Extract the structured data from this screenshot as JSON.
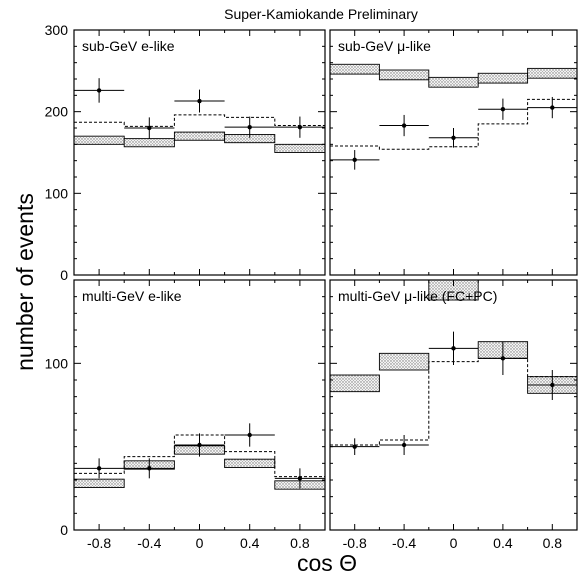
{
  "figure": {
    "title": "Super-Kamiokande Preliminary",
    "xlabel": "cos Θ",
    "ylabel": "number of events"
  },
  "chart_data": [
    {
      "type": "bar",
      "title": "sub-GeV e-like",
      "x_bins": [
        [
          -1.0,
          -0.6
        ],
        [
          -0.6,
          -0.2
        ],
        [
          -0.2,
          0.2
        ],
        [
          0.2,
          0.6
        ],
        [
          0.6,
          1.0
        ]
      ],
      "x_centers": [
        -0.8,
        -0.4,
        0,
        0.4,
        0.8
      ],
      "ylim": [
        0,
        300
      ],
      "yticks": [
        0,
        100,
        200,
        300
      ],
      "xticks": [],
      "mc_oscillated": {
        "center": [
          165,
          162,
          170,
          167,
          155
        ],
        "half_width": [
          5,
          5,
          5,
          5,
          5
        ]
      },
      "no_oscillation": [
        187,
        182,
        196,
        193,
        183
      ],
      "data": {
        "values": [
          226,
          180,
          213,
          181,
          181
        ],
        "errors": [
          15,
          13,
          14,
          13,
          13
        ]
      }
    },
    {
      "type": "bar",
      "title": "sub-GeV μ-like",
      "x_bins": [
        [
          -1.0,
          -0.6
        ],
        [
          -0.6,
          -0.2
        ],
        [
          -0.2,
          0.2
        ],
        [
          0.2,
          0.6
        ],
        [
          0.6,
          1.0
        ]
      ],
      "x_centers": [
        -0.8,
        -0.4,
        0,
        0.4,
        0.8
      ],
      "ylim": [
        0,
        300
      ],
      "yticks": [],
      "xticks": [],
      "mc_oscillated": {
        "center": [
          252,
          245,
          236,
          241,
          247
        ],
        "half_width": [
          6,
          6,
          6,
          6,
          6
        ]
      },
      "no_oscillation": [
        158,
        154,
        157,
        185,
        215
      ],
      "data": {
        "values": [
          141,
          183,
          168,
          203,
          205
        ],
        "errors": [
          12,
          13,
          12,
          13,
          13
        ]
      }
    },
    {
      "type": "bar",
      "title": "multi-GeV e-like",
      "x_bins": [
        [
          -1.0,
          -0.6
        ],
        [
          -0.6,
          -0.2
        ],
        [
          -0.2,
          0.2
        ],
        [
          0.2,
          0.6
        ],
        [
          0.6,
          1.0
        ]
      ],
      "x_centers": [
        -0.8,
        -0.4,
        0,
        0.4,
        0.8
      ],
      "ylim": [
        0,
        150
      ],
      "yticks": [
        0,
        100
      ],
      "xticks": [
        "-0.8",
        "-0.4",
        "0",
        "0.4",
        "0.8"
      ],
      "mc_oscillated": {
        "center": [
          28,
          39,
          48,
          40,
          27
        ],
        "half_width": [
          2.5,
          2.5,
          2.5,
          2.5,
          2.5
        ]
      },
      "no_oscillation": [
        34,
        44,
        57,
        47,
        32
      ],
      "data": {
        "values": [
          37,
          37,
          51,
          57,
          31
        ],
        "errors": [
          6,
          6,
          7,
          7,
          6
        ]
      }
    },
    {
      "type": "bar",
      "title": "multi-GeV μ-like (FC+PC)",
      "x_bins": [
        [
          -1.0,
          -0.6
        ],
        [
          -0.6,
          -0.2
        ],
        [
          -0.2,
          0.2
        ],
        [
          0.2,
          0.6
        ],
        [
          0.6,
          1.0
        ]
      ],
      "x_centers": [
        -0.8,
        -0.4,
        0,
        0.4,
        0.8
      ],
      "ylim": [
        0,
        150
      ],
      "yticks": [],
      "xticks": [
        "-0.8",
        "-0.4",
        "0",
        "0.4",
        "0.8"
      ],
      "mc_oscillated": {
        "center": [
          88,
          101,
          144,
          108,
          87
        ],
        "half_width": [
          5,
          5,
          6,
          5,
          5
        ]
      },
      "no_oscillation": [
        51,
        54,
        101,
        103,
        92
      ],
      "data": {
        "values": [
          50,
          51,
          109,
          103,
          87
        ],
        "errors": [
          5,
          6,
          10,
          10,
          9
        ]
      }
    }
  ]
}
